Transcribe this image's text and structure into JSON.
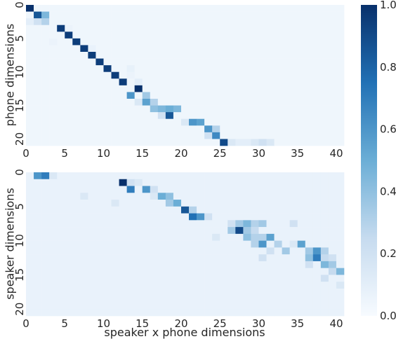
{
  "chart_data": {
    "type": "heatmap",
    "colormap": "Blues",
    "colors": {
      "low": "#f7fbff",
      "mid": "#6baed6",
      "high": "#08306b"
    },
    "shared_xlabel": "speaker x phone dimensions",
    "colorbar": {
      "range": [
        0,
        1
      ],
      "ticks": [
        0.0,
        0.2,
        0.4,
        0.6,
        0.8,
        1.0
      ],
      "tick_labels": [
        "0.0",
        "0.2",
        "0.4",
        "0.6",
        "0.8",
        "1.0"
      ]
    },
    "panels": [
      {
        "ylabel": "phone dimensions",
        "n_rows": 21,
        "n_cols": 41,
        "xticks": [
          0,
          5,
          10,
          15,
          20,
          25,
          30,
          35,
          40
        ],
        "xtick_labels": [
          "0",
          "5",
          "10",
          "15",
          "20",
          "25",
          "30",
          "35",
          "40"
        ],
        "yticks": [
          0,
          5,
          10,
          15,
          20
        ],
        "ytick_labels": [
          "0",
          "5",
          "10",
          "15",
          "20"
        ],
        "background": 0.04,
        "cells": [
          [
            0,
            0,
            1.0
          ],
          [
            1,
            1,
            0.85
          ],
          [
            1,
            2,
            0.45
          ],
          [
            2,
            1,
            0.2
          ],
          [
            2,
            2,
            0.3
          ],
          [
            2,
            0,
            0.1
          ],
          [
            3,
            4,
            0.95
          ],
          [
            4,
            5,
            0.95
          ],
          [
            5,
            6,
            0.95
          ],
          [
            6,
            7,
            0.95
          ],
          [
            7,
            8,
            0.95
          ],
          [
            8,
            9,
            0.95
          ],
          [
            9,
            10,
            0.95
          ],
          [
            10,
            11,
            0.95
          ],
          [
            11,
            12,
            0.95
          ],
          [
            12,
            14,
            1.0
          ],
          [
            13,
            13,
            0.6
          ],
          [
            13,
            15,
            0.35
          ],
          [
            14,
            15,
            0.55
          ],
          [
            14,
            16,
            0.3
          ],
          [
            14,
            14,
            0.15
          ],
          [
            15,
            16,
            0.4
          ],
          [
            15,
            17,
            0.45
          ],
          [
            15,
            18,
            0.5
          ],
          [
            15,
            19,
            0.45
          ],
          [
            16,
            18,
            0.85
          ],
          [
            16,
            17,
            0.2
          ],
          [
            17,
            21,
            0.6
          ],
          [
            17,
            22,
            0.55
          ],
          [
            17,
            20,
            0.15
          ],
          [
            18,
            23,
            0.6
          ],
          [
            18,
            24,
            0.3
          ],
          [
            19,
            24,
            0.65
          ],
          [
            19,
            23,
            0.2
          ],
          [
            20,
            25,
            0.9
          ],
          [
            20,
            26,
            0.15
          ],
          [
            20,
            27,
            0.1
          ],
          [
            20,
            28,
            0.1
          ],
          [
            20,
            29,
            0.15
          ],
          [
            20,
            30,
            0.2
          ],
          [
            20,
            31,
            0.15
          ],
          [
            3,
            5,
            0.06
          ],
          [
            5,
            3,
            0.06
          ],
          [
            6,
            8,
            0.07
          ],
          [
            9,
            13,
            0.08
          ],
          [
            10,
            13,
            0.06
          ],
          [
            11,
            14,
            0.1
          ]
        ]
      },
      {
        "ylabel": "speaker dimensions",
        "n_rows": 21,
        "n_cols": 41,
        "xticks": [
          0,
          5,
          10,
          15,
          20,
          25,
          30,
          35,
          40
        ],
        "xtick_labels": [
          "0",
          "5",
          "10",
          "15",
          "20",
          "25",
          "30",
          "35",
          "40"
        ],
        "yticks": [
          0,
          5,
          10,
          15,
          20
        ],
        "ytick_labels": [
          "0",
          "5",
          "10",
          "15",
          "20"
        ],
        "background": 0.07,
        "cells": [
          [
            0,
            1,
            0.6
          ],
          [
            0,
            2,
            0.7
          ],
          [
            0,
            3,
            0.15
          ],
          [
            1,
            12,
            1.0
          ],
          [
            1,
            13,
            0.2
          ],
          [
            1,
            14,
            0.15
          ],
          [
            2,
            13,
            0.7
          ],
          [
            2,
            15,
            0.6
          ],
          [
            2,
            16,
            0.2
          ],
          [
            3,
            17,
            0.5
          ],
          [
            3,
            18,
            0.4
          ],
          [
            3,
            16,
            0.15
          ],
          [
            4,
            18,
            0.35
          ],
          [
            4,
            19,
            0.5
          ],
          [
            5,
            20,
            0.85
          ],
          [
            5,
            21,
            0.3
          ],
          [
            6,
            21,
            0.75
          ],
          [
            6,
            22,
            0.6
          ],
          [
            6,
            23,
            0.2
          ],
          [
            7,
            26,
            0.2
          ],
          [
            7,
            27,
            0.35
          ],
          [
            7,
            28,
            0.45
          ],
          [
            7,
            29,
            0.3
          ],
          [
            7,
            30,
            0.35
          ],
          [
            8,
            26,
            0.35
          ],
          [
            8,
            27,
            0.9
          ],
          [
            8,
            28,
            0.35
          ],
          [
            8,
            29,
            0.25
          ],
          [
            9,
            28,
            0.4
          ],
          [
            9,
            29,
            0.3
          ],
          [
            9,
            30,
            0.3
          ],
          [
            9,
            31,
            0.55
          ],
          [
            10,
            29,
            0.3
          ],
          [
            10,
            30,
            0.6
          ],
          [
            10,
            32,
            0.3
          ],
          [
            10,
            34,
            0.15
          ],
          [
            10,
            35,
            0.55
          ],
          [
            11,
            31,
            0.2
          ],
          [
            11,
            33,
            0.35
          ],
          [
            11,
            36,
            0.35
          ],
          [
            11,
            37,
            0.6
          ],
          [
            11,
            38,
            0.3
          ],
          [
            12,
            36,
            0.4
          ],
          [
            12,
            37,
            0.7
          ],
          [
            12,
            38,
            0.25
          ],
          [
            12,
            39,
            0.2
          ],
          [
            13,
            36,
            0.2
          ],
          [
            13,
            38,
            0.45
          ],
          [
            13,
            39,
            0.35
          ],
          [
            14,
            39,
            0.25
          ],
          [
            14,
            40,
            0.45
          ],
          [
            7,
            34,
            0.2
          ],
          [
            15,
            38,
            0.2
          ],
          [
            16,
            40,
            0.15
          ],
          [
            3,
            7,
            0.15
          ],
          [
            4,
            11,
            0.15
          ],
          [
            9,
            24,
            0.15
          ],
          [
            12,
            30,
            0.2
          ]
        ]
      }
    ]
  }
}
